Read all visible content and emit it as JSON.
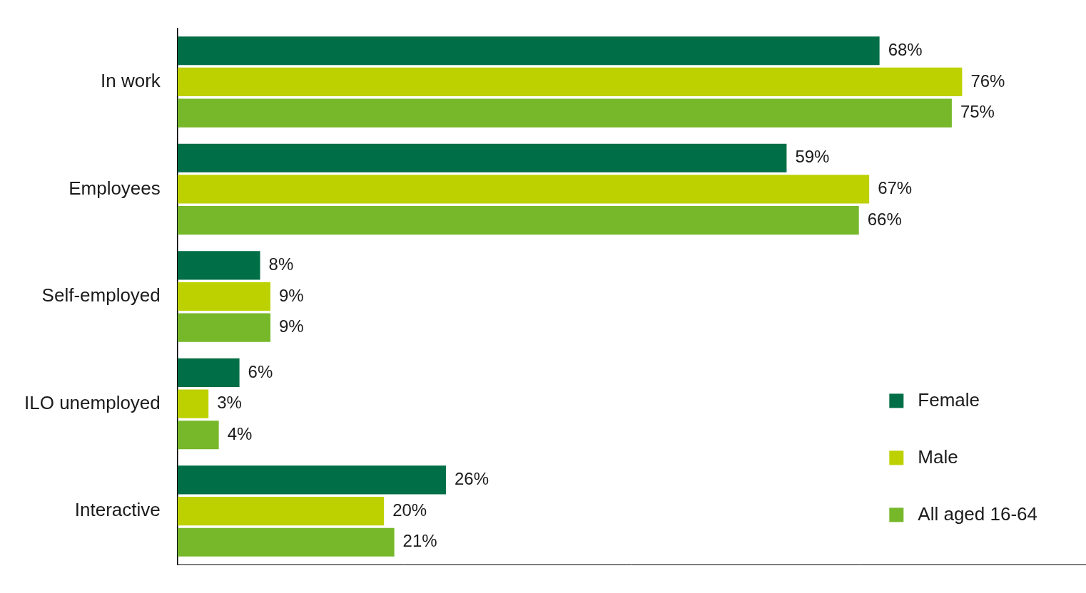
{
  "chart_data": {
    "type": "bar",
    "orientation": "horizontal",
    "categories": [
      "In work",
      "Employees",
      "Self-employed",
      "ILO unemployed",
      "Interactive"
    ],
    "series": [
      {
        "name": "Female",
        "color": "#006e46",
        "values": [
          68,
          59,
          8,
          6,
          26
        ],
        "value_labels": [
          "68%",
          "59%",
          "8%",
          "6%",
          "26%"
        ]
      },
      {
        "name": "Male",
        "color": "#bdd100",
        "values": [
          76,
          67,
          9,
          3,
          20
        ],
        "value_labels": [
          "76%",
          "67%",
          "9%",
          "3%",
          "20%"
        ]
      },
      {
        "name": "All aged 16-64",
        "color": "#76b82a",
        "values": [
          75,
          66,
          9,
          4,
          21
        ],
        "value_labels": [
          "75%",
          "66%",
          "9%",
          "4%",
          "21%"
        ]
      }
    ],
    "xlim": [
      0,
      88
    ],
    "grid": false,
    "legend": "lower right",
    "data_labels": true,
    "tick_labels": "y"
  }
}
